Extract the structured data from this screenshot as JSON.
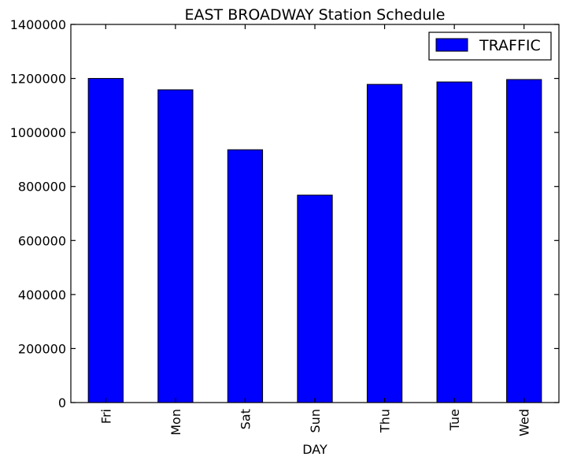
{
  "chart_data": {
    "type": "bar",
    "title": "EAST BROADWAY Station Schedule",
    "xlabel": "DAY",
    "ylabel": "",
    "categories": [
      "Fri",
      "Mon",
      "Sat",
      "Sun",
      "Thu",
      "Tue",
      "Wed"
    ],
    "series": [
      {
        "name": "TRAFFIC",
        "color": "#0000ff",
        "values": [
          1200000,
          1158000,
          936000,
          768000,
          1178000,
          1187000,
          1196000
        ]
      }
    ],
    "ylim": [
      0,
      1400000
    ],
    "yticks": [
      0,
      200000,
      400000,
      600000,
      800000,
      1000000,
      1200000,
      1400000
    ],
    "ytick_labels": [
      "0",
      "200000",
      "400000",
      "600000",
      "800000",
      "1000000",
      "1200000",
      "1400000"
    ],
    "grid": false,
    "legend_position": "top-right"
  }
}
